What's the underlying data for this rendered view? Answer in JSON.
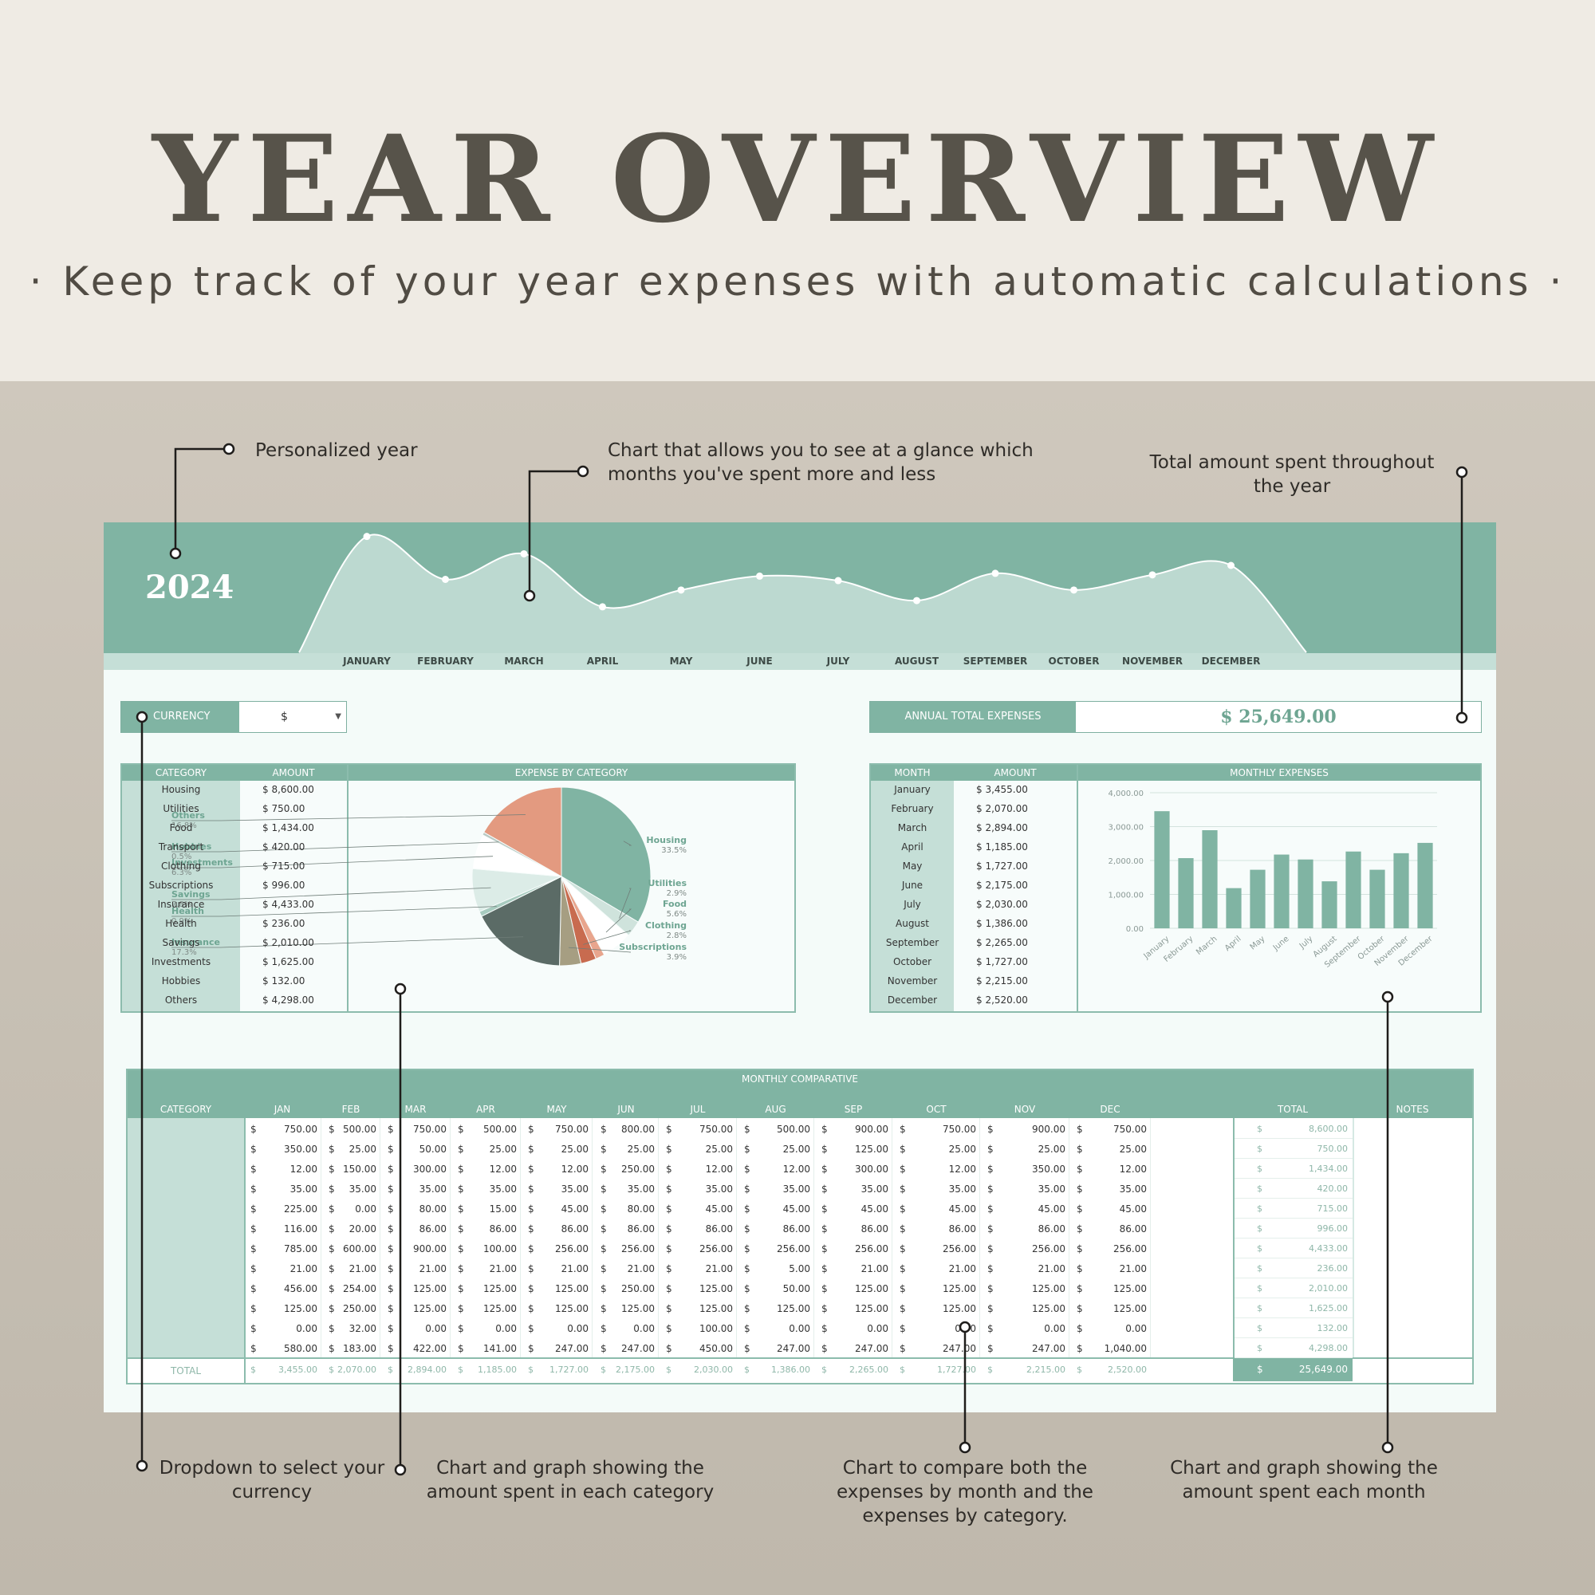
{
  "header": {
    "title": "YEAR OVERVIEW",
    "subtitle": "· Keep track of your year expenses with automatic calculations ·"
  },
  "callouts": {
    "year": "Personalized year",
    "chart": "Chart that allows you to see at a glance which months you've spent more and less",
    "total": "Total amount spent throughout the year",
    "currency": "Dropdown to select your currency",
    "category": "Chart and graph showing the amount spent in each category",
    "compare": "Chart to compare both the expenses by month and the expenses by category.",
    "monthly": "Chart and graph showing the amount spent each month"
  },
  "sheet": {
    "year": "2024",
    "months_upper": [
      "JANUARY",
      "FEBRUARY",
      "MARCH",
      "APRIL",
      "MAY",
      "JUNE",
      "JULY",
      "AUGUST",
      "SEPTEMBER",
      "OCTOBER",
      "NOVEMBER",
      "DECEMBER"
    ],
    "currency_label": "CURRENCY",
    "currency_value": "$",
    "annual_label": "ANNUAL TOTAL EXPENSES",
    "annual_value": "$ 25,649.00",
    "category_table": {
      "headers": [
        "CATEGORY",
        "AMOUNT"
      ],
      "chart_title": "EXPENSE BY CATEGORY",
      "rows": [
        {
          "name": "Housing",
          "amount": "$ 8,600.00"
        },
        {
          "name": "Utilities",
          "amount": "$ 750.00"
        },
        {
          "name": "Food",
          "amount": "$ 1,434.00"
        },
        {
          "name": "Transport",
          "amount": "$ 420.00"
        },
        {
          "name": "Clothing",
          "amount": "$ 715.00"
        },
        {
          "name": "Subscriptions",
          "amount": "$ 996.00"
        },
        {
          "name": "Insurance",
          "amount": "$ 4,433.00"
        },
        {
          "name": "Health",
          "amount": "$ 236.00"
        },
        {
          "name": "Savings",
          "amount": "$ 2,010.00"
        },
        {
          "name": "Investments",
          "amount": "$ 1,625.00"
        },
        {
          "name": "Hobbies",
          "amount": "$ 132.00"
        },
        {
          "name": "Others",
          "amount": "$ 4,298.00"
        }
      ]
    },
    "month_table": {
      "headers": [
        "MONTH",
        "AMOUNT"
      ],
      "chart_title": "MONTHLY EXPENSES",
      "rows": [
        {
          "name": "January",
          "amount": "$ 3,455.00"
        },
        {
          "name": "February",
          "amount": "$ 2,070.00"
        },
        {
          "name": "March",
          "amount": "$ 2,894.00"
        },
        {
          "name": "April",
          "amount": "$ 1,185.00"
        },
        {
          "name": "May",
          "amount": "$ 1,727.00"
        },
        {
          "name": "June",
          "amount": "$ 2,175.00"
        },
        {
          "name": "July",
          "amount": "$ 2,030.00"
        },
        {
          "name": "August",
          "amount": "$ 1,386.00"
        },
        {
          "name": "September",
          "amount": "$ 2,265.00"
        },
        {
          "name": "October",
          "amount": "$ 1,727.00"
        },
        {
          "name": "November",
          "amount": "$ 2,215.00"
        },
        {
          "name": "December",
          "amount": "$ 2,520.00"
        }
      ]
    },
    "comparative": {
      "title": "MONTHLY COMPARATIVE",
      "category_header": "CATEGORY",
      "month_headers": [
        "JAN",
        "FEB",
        "MAR",
        "APR",
        "MAY",
        "JUN",
        "JUL",
        "AUG",
        "SEP",
        "OCT",
        "NOV",
        "DEC"
      ],
      "total_header": "TOTAL",
      "notes_header": "NOTES",
      "total_row_label": "TOTAL",
      "currency_symbol": "$",
      "rows": [
        {
          "values": [
            "750.00",
            "500.00",
            "750.00",
            "500.00",
            "750.00",
            "800.00",
            "750.00",
            "500.00",
            "900.00",
            "750.00",
            "900.00",
            "750.00"
          ],
          "total": "8,600.00"
        },
        {
          "values": [
            "350.00",
            "25.00",
            "50.00",
            "25.00",
            "25.00",
            "25.00",
            "25.00",
            "25.00",
            "125.00",
            "25.00",
            "25.00",
            "25.00"
          ],
          "total": "750.00"
        },
        {
          "values": [
            "12.00",
            "150.00",
            "300.00",
            "12.00",
            "12.00",
            "250.00",
            "12.00",
            "12.00",
            "300.00",
            "12.00",
            "350.00",
            "12.00"
          ],
          "total": "1,434.00"
        },
        {
          "values": [
            "35.00",
            "35.00",
            "35.00",
            "35.00",
            "35.00",
            "35.00",
            "35.00",
            "35.00",
            "35.00",
            "35.00",
            "35.00",
            "35.00"
          ],
          "total": "420.00"
        },
        {
          "values": [
            "225.00",
            "0.00",
            "80.00",
            "15.00",
            "45.00",
            "80.00",
            "45.00",
            "45.00",
            "45.00",
            "45.00",
            "45.00",
            "45.00"
          ],
          "total": "715.00"
        },
        {
          "values": [
            "116.00",
            "20.00",
            "86.00",
            "86.00",
            "86.00",
            "86.00",
            "86.00",
            "86.00",
            "86.00",
            "86.00",
            "86.00",
            "86.00"
          ],
          "total": "996.00"
        },
        {
          "values": [
            "785.00",
            "600.00",
            "900.00",
            "100.00",
            "256.00",
            "256.00",
            "256.00",
            "256.00",
            "256.00",
            "256.00",
            "256.00",
            "256.00"
          ],
          "total": "4,433.00"
        },
        {
          "values": [
            "21.00",
            "21.00",
            "21.00",
            "21.00",
            "21.00",
            "21.00",
            "21.00",
            "5.00",
            "21.00",
            "21.00",
            "21.00",
            "21.00"
          ],
          "total": "236.00"
        },
        {
          "values": [
            "456.00",
            "254.00",
            "125.00",
            "125.00",
            "125.00",
            "250.00",
            "125.00",
            "50.00",
            "125.00",
            "125.00",
            "125.00",
            "125.00"
          ],
          "total": "2,010.00"
        },
        {
          "values": [
            "125.00",
            "250.00",
            "125.00",
            "125.00",
            "125.00",
            "125.00",
            "125.00",
            "125.00",
            "125.00",
            "125.00",
            "125.00",
            "125.00"
          ],
          "total": "1,625.00"
        },
        {
          "values": [
            "0.00",
            "32.00",
            "0.00",
            "0.00",
            "0.00",
            "0.00",
            "100.00",
            "0.00",
            "0.00",
            "0.00",
            "0.00",
            "0.00"
          ],
          "total": "132.00"
        },
        {
          "values": [
            "580.00",
            "183.00",
            "422.00",
            "141.00",
            "247.00",
            "247.00",
            "450.00",
            "247.00",
            "247.00",
            "247.00",
            "247.00",
            "1,040.00"
          ],
          "total": "4,298.00"
        }
      ],
      "totals": [
        "3,455.00",
        "2,070.00",
        "2,894.00",
        "1,185.00",
        "1,727.00",
        "2,175.00",
        "2,030.00",
        "1,386.00",
        "2,265.00",
        "1,727.00",
        "2,215.00",
        "2,520.00"
      ],
      "grand_total": "25,649.00"
    }
  },
  "chart_data": [
    {
      "type": "area",
      "x": [
        "JANUARY",
        "FEBRUARY",
        "MARCH",
        "APRIL",
        "MAY",
        "JUNE",
        "JULY",
        "AUGUST",
        "SEPTEMBER",
        "OCTOBER",
        "NOVEMBER",
        "DECEMBER"
      ],
      "values": [
        3455,
        2070,
        2894,
        1185,
        1727,
        2175,
        2030,
        1386,
        2265,
        1727,
        2215,
        2520
      ]
    },
    {
      "type": "pie",
      "title": "EXPENSE BY CATEGORY",
      "slices": [
        {
          "label": "Housing",
          "value": 8600,
          "pct": "33.5%",
          "color": "#80b4a3"
        },
        {
          "label": "Utilities",
          "value": 750,
          "pct": "2.9%",
          "color": "#cfe3dc"
        },
        {
          "label": "Food",
          "value": 1434,
          "pct": "5.6%",
          "color": "#ffffff"
        },
        {
          "label": "Transport",
          "value": 420,
          "pct": "",
          "color": "#e8a58d"
        },
        {
          "label": "Clothing",
          "value": 715,
          "pct": "2.8%",
          "color": "#c86b4f"
        },
        {
          "label": "Subscriptions",
          "value": 996,
          "pct": "3.9%",
          "color": "#a69e82"
        },
        {
          "label": "Insurance",
          "value": 4433,
          "pct": "17.3%",
          "color": "#5b6b66"
        },
        {
          "label": "Health",
          "value": 236,
          "pct": "0.9%",
          "color": "#a8cbbf"
        },
        {
          "label": "Savings",
          "value": 2010,
          "pct": "7.8%",
          "color": "#dcece7"
        },
        {
          "label": "Investments",
          "value": 1625,
          "pct": "6.3%",
          "color": "#ffffff"
        },
        {
          "label": "Hobbies",
          "value": 132,
          "pct": "0.5%",
          "color": "#b9c9c3"
        },
        {
          "label": "Others",
          "value": 4298,
          "pct": "16.8%",
          "color": "#e39a80"
        }
      ],
      "label_colors": {
        "label": "#6ea592",
        "pct": "#7f8a86"
      }
    },
    {
      "type": "bar",
      "title": "MONTHLY EXPENSES",
      "categories": [
        "January",
        "February",
        "March",
        "April",
        "May",
        "June",
        "July",
        "August",
        "September",
        "October",
        "November",
        "December"
      ],
      "values": [
        3455,
        2070,
        2894,
        1185,
        1727,
        2175,
        2030,
        1386,
        2265,
        1727,
        2215,
        2520
      ],
      "yticks": [
        "0.00",
        "1,000.00",
        "2,000.00",
        "3,000.00",
        "4,000.00"
      ],
      "ylim": [
        0,
        4000
      ],
      "color": "#80b4a3"
    }
  ],
  "colors": {
    "accent": "#80b4a3",
    "light": "#c5dfd7",
    "text": "#57534a"
  }
}
